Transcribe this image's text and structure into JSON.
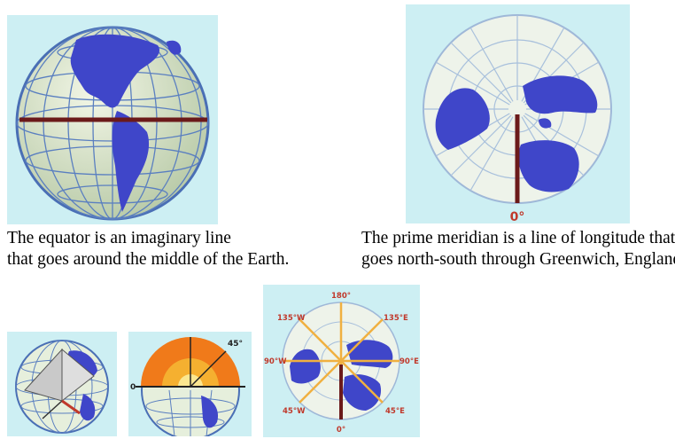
{
  "captions": {
    "equator": {
      "line1": "The equator is an imaginary line",
      "line2": "that goes around the middle of the Earth."
    },
    "prime_meridian": {
      "line1": "The prime meridian is a line of longitude that",
      "line2": "goes north-south through Greenwich, England."
    }
  },
  "figure_labels": {
    "prime_meridian_zero": "0°",
    "angle_45": "45°",
    "angle_0": "0",
    "lon_180": "180°",
    "lon_135w": "135°W",
    "lon_135e": "135°E",
    "lon_90w": "90°W",
    "lon_90e": "90°E",
    "lon_45w": "45°W",
    "lon_45e": "45°E",
    "lon_0": "0°"
  },
  "colors": {
    "panel_background": "#cdeff3",
    "globe_ocean": "#d9e6c8",
    "globe_grid": "#5a7fc0",
    "land": "#3f46c9",
    "equator_line": "#6b1a1a",
    "label_red": "#c0392b",
    "meridian_orange": "#f0b040",
    "hemisphere_orange": "#f07a1a"
  }
}
